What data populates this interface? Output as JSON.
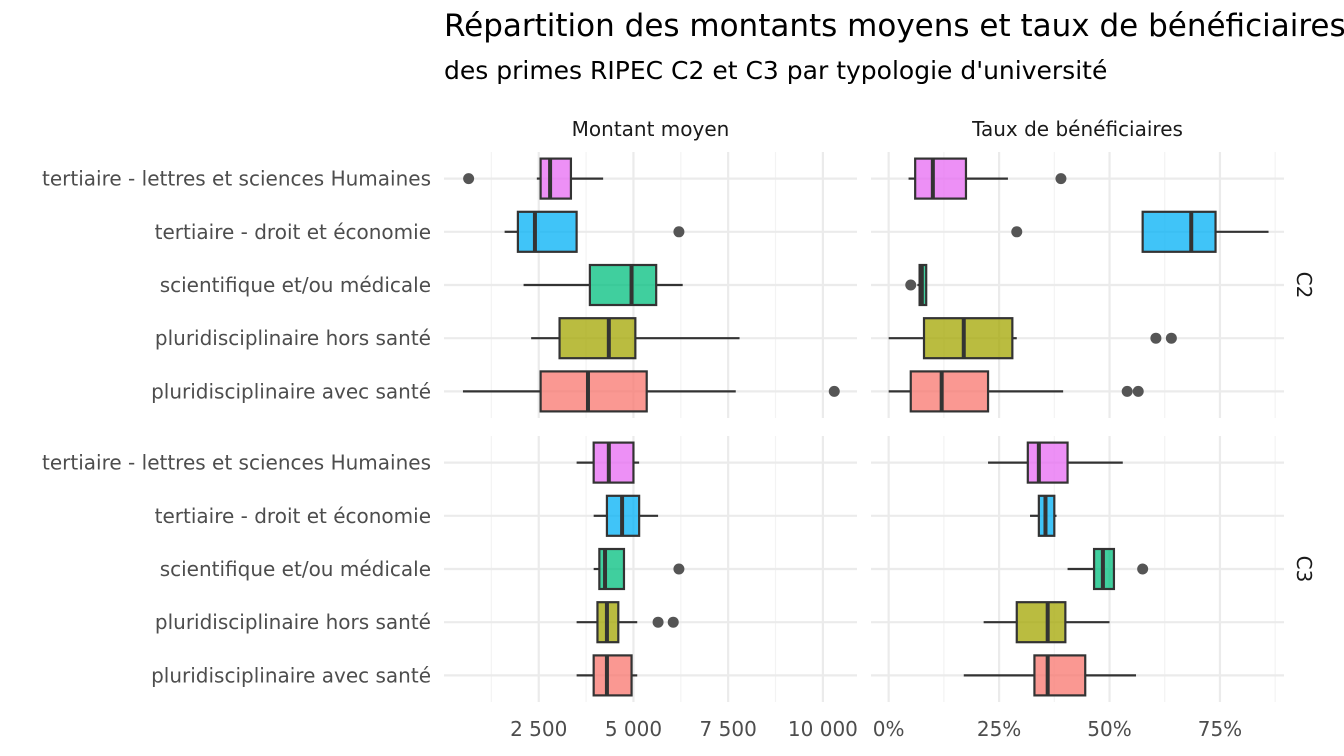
{
  "chart_data": {
    "type": "boxplot",
    "title": "Répartition des montants moyens et taux de bénéficiaires",
    "subtitle": "des primes RIPEC C2 et C3 par typologie d'université",
    "categories": [
      "tertiaire - lettres et sciences Humaines",
      "tertiaire - droit et économie",
      "scientifique et/ou médicale",
      "pluridisciplinaire hors santé",
      "pluridisciplinaire avec santé"
    ],
    "category_colors": [
      "#E76BF3",
      "#00B0F6",
      "#00BF7D",
      "#A3A500",
      "#F8766D"
    ],
    "columns": [
      {
        "key": "montant",
        "label": "Montant moyen",
        "xlim": [
          0,
          10900
        ],
        "ticks": [
          2500,
          5000,
          7500,
          10000
        ],
        "tick_labels": [
          "2 500",
          "5 000",
          "7 500",
          "10 000"
        ]
      },
      {
        "key": "taux",
        "label": "Taux de bénéficiaires",
        "xlim": [
          -0.04,
          0.895
        ],
        "ticks": [
          0,
          0.25,
          0.5,
          0.75
        ],
        "tick_labels": [
          "0%",
          "25%",
          "50%",
          "75%"
        ]
      }
    ],
    "rows": [
      {
        "label": "C2",
        "data": {
          "montant": [
            {
              "min": 2450,
              "q1": 2550,
              "median": 2800,
              "q3": 3350,
              "max": 4200,
              "outliers": [
                650
              ]
            },
            {
              "min": 1600,
              "q1": 1950,
              "median": 2400,
              "q3": 3500,
              "max": 3500,
              "outliers": [
                6200
              ]
            },
            {
              "min": 2100,
              "q1": 3850,
              "median": 4950,
              "q3": 5600,
              "max": 6300,
              "outliers": []
            },
            {
              "min": 2300,
              "q1": 3050,
              "median": 4350,
              "q3": 5050,
              "max": 7800,
              "outliers": []
            },
            {
              "min": 500,
              "q1": 2550,
              "median": 3800,
              "q3": 5350,
              "max": 7700,
              "outliers": [
                10300
              ]
            }
          ],
          "taux": [
            {
              "min": 0.045,
              "q1": 0.06,
              "median": 0.1,
              "q3": 0.175,
              "max": 0.27,
              "outliers": [
                0.39
              ]
            },
            {
              "min": 0.575,
              "q1": 0.575,
              "median": 0.685,
              "q3": 0.74,
              "max": 0.86,
              "outliers": [
                0.29
              ]
            },
            {
              "min": 0.065,
              "q1": 0.07,
              "median": 0.075,
              "q3": 0.085,
              "max": 0.085,
              "outliers": [
                0.05
              ]
            },
            {
              "min": 0.0,
              "q1": 0.08,
              "median": 0.17,
              "q3": 0.28,
              "max": 0.29,
              "outliers": [
                0.605,
                0.64
              ]
            },
            {
              "min": 0.0,
              "q1": 0.05,
              "median": 0.12,
              "q3": 0.225,
              "max": 0.395,
              "outliers": [
                0.54,
                0.565
              ]
            }
          ]
        }
      },
      {
        "label": "C3",
        "data": {
          "montant": [
            {
              "min": 3500,
              "q1": 3950,
              "median": 4350,
              "q3": 5000,
              "max": 5150,
              "outliers": []
            },
            {
              "min": 3950,
              "q1": 4300,
              "median": 4700,
              "q3": 5150,
              "max": 5650,
              "outliers": []
            },
            {
              "min": 3950,
              "q1": 4100,
              "median": 4250,
              "q3": 4750,
              "max": 4750,
              "outliers": [
                6200
              ]
            },
            {
              "min": 3500,
              "q1": 4050,
              "median": 4300,
              "q3": 4600,
              "max": 5100,
              "outliers": [
                5650,
                6050
              ]
            },
            {
              "min": 3500,
              "q1": 3950,
              "median": 4300,
              "q3": 4950,
              "max": 5100,
              "outliers": []
            }
          ],
          "taux": [
            {
              "min": 0.225,
              "q1": 0.315,
              "median": 0.34,
              "q3": 0.405,
              "max": 0.53,
              "outliers": []
            },
            {
              "min": 0.32,
              "q1": 0.34,
              "median": 0.355,
              "q3": 0.375,
              "max": 0.38,
              "outliers": []
            },
            {
              "min": 0.405,
              "q1": 0.465,
              "median": 0.485,
              "q3": 0.51,
              "max": 0.51,
              "outliers": [
                0.575
              ]
            },
            {
              "min": 0.215,
              "q1": 0.29,
              "median": 0.36,
              "q3": 0.4,
              "max": 0.5,
              "outliers": []
            },
            {
              "min": 0.17,
              "q1": 0.33,
              "median": 0.36,
              "q3": 0.445,
              "max": 0.56,
              "outliers": []
            }
          ]
        }
      }
    ]
  }
}
